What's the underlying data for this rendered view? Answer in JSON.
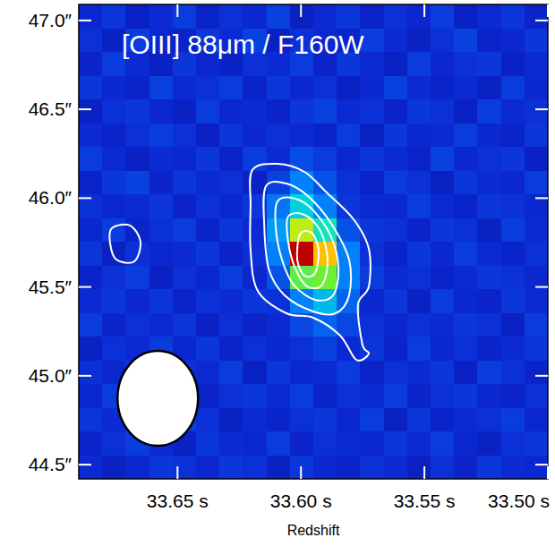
{
  "chart_data": {
    "type": "heatmap",
    "title": "[OIII] 88μm / F160W",
    "x_label": "Redshift",
    "xlim": [
      33.69,
      33.5
    ],
    "xticks": [
      {
        "value": 33.65,
        "label": "33.65 s"
      },
      {
        "value": 33.6,
        "label": "33.60 s"
      },
      {
        "value": 33.55,
        "label": "33.55 s"
      },
      {
        "value": 33.5,
        "label": "33.50 s"
      }
    ],
    "ylim": [
      44.42,
      47.09
    ],
    "yticks": [
      {
        "value": 47.0,
        "label": "47.0″"
      },
      {
        "value": 46.5,
        "label": "46.5″"
      },
      {
        "value": 46.0,
        "label": "46.0″"
      },
      {
        "value": 45.5,
        "label": "45.5″"
      },
      {
        "value": 45.0,
        "label": "45.0″"
      },
      {
        "value": 44.5,
        "label": "44.5″"
      }
    ],
    "zlim": [
      0,
      1
    ],
    "cells": [
      [
        0.14,
        0.17,
        0.12,
        0.15,
        0.18,
        0.13,
        0.16,
        0.14,
        0.19,
        0.12,
        0.15,
        0.17,
        0.13,
        0.16,
        0.14,
        0.18,
        0.12,
        0.15,
        0.17,
        0.13
      ],
      [
        0.16,
        0.12,
        0.18,
        0.14,
        0.13,
        0.17,
        0.15,
        0.19,
        0.12,
        0.16,
        0.14,
        0.13,
        0.18,
        0.15,
        0.12,
        0.16,
        0.19,
        0.13,
        0.14,
        0.17
      ],
      [
        0.13,
        0.18,
        0.15,
        0.12,
        0.17,
        0.14,
        0.12,
        0.16,
        0.15,
        0.18,
        0.13,
        0.17,
        0.15,
        0.12,
        0.18,
        0.14,
        0.16,
        0.17,
        0.12,
        0.15
      ],
      [
        0.17,
        0.14,
        0.13,
        0.19,
        0.15,
        0.16,
        0.18,
        0.13,
        0.17,
        0.14,
        0.16,
        0.12,
        0.14,
        0.19,
        0.15,
        0.13,
        0.15,
        0.12,
        0.18,
        0.14
      ],
      [
        0.12,
        0.16,
        0.17,
        0.14,
        0.12,
        0.18,
        0.14,
        0.15,
        0.13,
        0.17,
        0.19,
        0.15,
        0.16,
        0.13,
        0.17,
        0.16,
        0.12,
        0.18,
        0.15,
        0.16
      ],
      [
        0.15,
        0.13,
        0.16,
        0.18,
        0.16,
        0.12,
        0.17,
        0.14,
        0.16,
        0.15,
        0.13,
        0.18,
        0.12,
        0.17,
        0.14,
        0.15,
        0.18,
        0.14,
        0.13,
        0.17
      ],
      [
        0.18,
        0.15,
        0.12,
        0.15,
        0.14,
        0.17,
        0.13,
        0.18,
        0.15,
        0.21,
        0.18,
        0.14,
        0.17,
        0.15,
        0.13,
        0.19,
        0.14,
        0.16,
        0.17,
        0.12
      ],
      [
        0.13,
        0.17,
        0.19,
        0.13,
        0.17,
        0.15,
        0.16,
        0.12,
        0.19,
        0.3,
        0.22,
        0.16,
        0.13,
        0.18,
        0.16,
        0.12,
        0.17,
        0.15,
        0.14,
        0.18
      ],
      [
        0.16,
        0.14,
        0.15,
        0.17,
        0.13,
        0.16,
        0.14,
        0.17,
        0.28,
        0.45,
        0.3,
        0.17,
        0.15,
        0.14,
        0.18,
        0.15,
        0.13,
        0.17,
        0.16,
        0.14
      ],
      [
        0.14,
        0.18,
        0.13,
        0.16,
        0.18,
        0.13,
        0.17,
        0.15,
        0.35,
        0.7,
        0.5,
        0.22,
        0.17,
        0.16,
        0.13,
        0.17,
        0.16,
        0.12,
        0.18,
        0.15
      ],
      [
        0.17,
        0.12,
        0.16,
        0.14,
        0.15,
        0.17,
        0.13,
        0.16,
        0.3,
        1.0,
        0.8,
        0.3,
        0.16,
        0.13,
        0.17,
        0.14,
        0.18,
        0.15,
        0.13,
        0.16
      ],
      [
        0.13,
        0.16,
        0.18,
        0.12,
        0.16,
        0.14,
        0.18,
        0.14,
        0.22,
        0.6,
        0.62,
        0.3,
        0.18,
        0.15,
        0.16,
        0.13,
        0.15,
        0.17,
        0.16,
        0.14
      ],
      [
        0.15,
        0.17,
        0.14,
        0.17,
        0.13,
        0.16,
        0.15,
        0.17,
        0.16,
        0.3,
        0.4,
        0.25,
        0.14,
        0.17,
        0.12,
        0.18,
        0.14,
        0.13,
        0.17,
        0.15
      ],
      [
        0.18,
        0.13,
        0.16,
        0.15,
        0.17,
        0.12,
        0.16,
        0.13,
        0.15,
        0.2,
        0.25,
        0.2,
        0.16,
        0.14,
        0.16,
        0.15,
        0.17,
        0.16,
        0.12,
        0.18
      ],
      [
        0.12,
        0.16,
        0.15,
        0.18,
        0.14,
        0.17,
        0.13,
        0.16,
        0.14,
        0.16,
        0.19,
        0.15,
        0.17,
        0.13,
        0.18,
        0.14,
        0.16,
        0.13,
        0.15,
        0.17
      ],
      [
        0.16,
        0.14,
        0.17,
        0.13,
        0.16,
        0.15,
        0.18,
        0.12,
        0.17,
        0.14,
        0.15,
        0.18,
        0.13,
        0.16,
        0.15,
        0.17,
        0.12,
        0.18,
        0.16,
        0.13
      ],
      [
        0.14,
        0.18,
        0.12,
        0.16,
        0.15,
        0.13,
        0.16,
        0.17,
        0.15,
        0.18,
        0.13,
        0.16,
        0.15,
        0.18,
        0.13,
        0.16,
        0.17,
        0.14,
        0.13,
        0.16
      ],
      [
        0.17,
        0.15,
        0.16,
        0.14,
        0.18,
        0.16,
        0.12,
        0.15,
        0.13,
        0.16,
        0.17,
        0.14,
        0.18,
        0.12,
        0.17,
        0.13,
        0.15,
        0.16,
        0.18,
        0.14
      ],
      [
        0.13,
        0.16,
        0.18,
        0.15,
        0.12,
        0.17,
        0.15,
        0.14,
        0.18,
        0.13,
        0.16,
        0.15,
        0.14,
        0.17,
        0.15,
        0.18,
        0.14,
        0.12,
        0.16,
        0.17
      ],
      [
        0.15,
        0.12,
        0.14,
        0.17,
        0.16,
        0.14,
        0.17,
        0.16,
        0.12,
        0.17,
        0.14,
        0.13,
        0.16,
        0.15,
        0.12,
        0.16,
        0.13,
        0.17,
        0.15,
        0.14
      ]
    ],
    "contours": [
      {
        "x": [
          33.6197,
          33.6095,
          33.5986,
          33.5896,
          33.5787,
          33.5725,
          33.5725,
          33.5769,
          33.5751,
          33.5725,
          33.5776,
          33.5841,
          33.595,
          33.6059,
          33.6175,
          33.6204,
          33.6204
        ],
        "y": [
          46.158,
          46.193,
          46.148,
          46.032,
          45.881,
          45.715,
          45.503,
          45.402,
          45.176,
          45.125,
          45.09,
          45.226,
          45.327,
          45.352,
          45.478,
          45.705,
          45.956
        ]
      },
      {
        "x": [
          33.6142,
          33.6059,
          33.5968,
          33.5877,
          33.5805,
          33.5805,
          33.5859,
          33.595,
          33.6066,
          33.6131,
          33.6149
        ],
        "y": [
          46.067,
          46.082,
          46.007,
          45.856,
          45.654,
          45.453,
          45.352,
          45.362,
          45.453,
          45.604,
          45.856
        ]
      },
      {
        "x": [
          33.6095,
          33.6023,
          33.595,
          33.5877,
          33.5848,
          33.587,
          33.5943,
          33.603,
          33.6077,
          33.6102
        ],
        "y": [
          45.982,
          45.997,
          45.931,
          45.78,
          45.604,
          45.453,
          45.428,
          45.513,
          45.654,
          45.831
        ]
      },
      {
        "x": [
          33.6052,
          33.5986,
          33.5921,
          33.5892,
          33.5914,
          33.5975,
          33.6023,
          33.6052
        ],
        "y": [
          45.896,
          45.906,
          45.815,
          45.654,
          45.513,
          45.503,
          45.604,
          45.755
        ]
      },
      {
        "x": [
          33.6004,
          33.5957,
          33.5928,
          33.5943,
          33.5986,
          33.6015
        ],
        "y": [
          45.795,
          45.805,
          45.705,
          45.579,
          45.564,
          45.654
        ]
      },
      {
        "x": [
          33.6766,
          33.6693,
          33.665,
          33.6675,
          33.6748,
          33.6773
        ],
        "y": [
          45.831,
          45.846,
          45.755,
          45.644,
          45.654,
          45.745
        ]
      }
    ],
    "beam": {
      "x": 33.658,
      "y": 44.873,
      "width": 0.0326,
      "height": 0.534
    }
  }
}
